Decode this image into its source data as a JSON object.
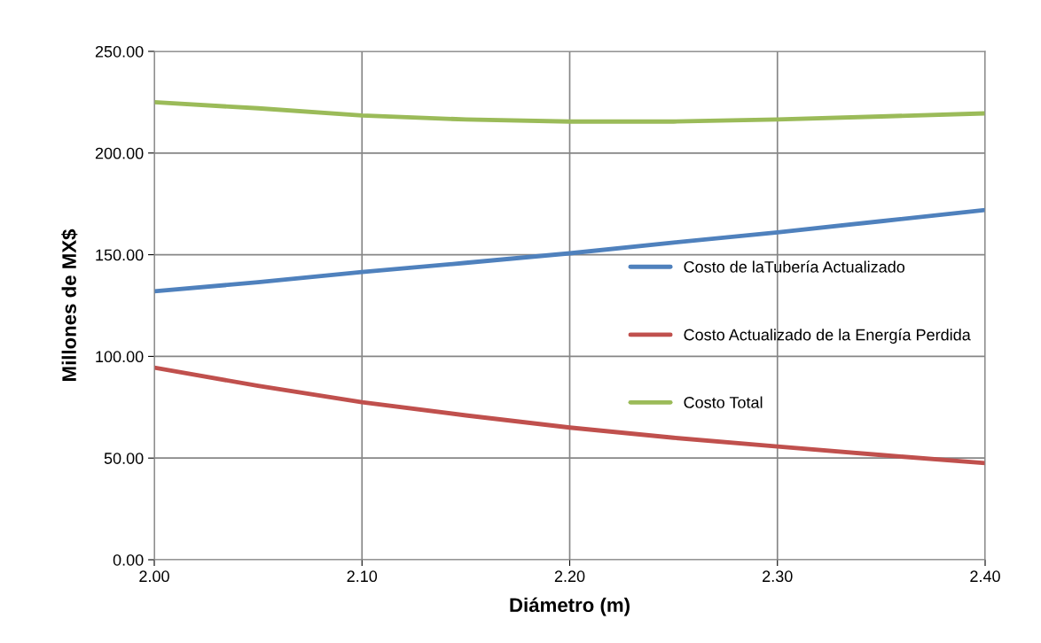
{
  "chart_data": {
    "type": "line",
    "xlabel": "Diámetro (m)",
    "ylabel": "Millones de MX$",
    "x": [
      2.0,
      2.05,
      2.1,
      2.15,
      2.2,
      2.25,
      2.3,
      2.35,
      2.4
    ],
    "series": [
      {
        "name": "Costo de laTubería Actualizado",
        "color": "#4f81bd",
        "values": [
          132,
          136.5,
          141.5,
          146,
          150.7,
          156,
          161,
          166.5,
          172
        ]
      },
      {
        "name": "Costo Actualizado de la Energía Perdida",
        "color": "#c0504d",
        "values": [
          94.5,
          85.5,
          77.5,
          71,
          65,
          60,
          55.7,
          51.5,
          47.5
        ]
      },
      {
        "name": "Costo Total",
        "color": "#9bbb59",
        "values": [
          225,
          222,
          218.5,
          216.5,
          215.5,
          215.5,
          216.5,
          218,
          219.5
        ]
      }
    ],
    "xlim": [
      2.0,
      2.4
    ],
    "xticks": [
      {
        "value": 2.0,
        "label": "2.00"
      },
      {
        "value": 2.1,
        "label": "2.10"
      },
      {
        "value": 2.2,
        "label": "2.20"
      },
      {
        "value": 2.3,
        "label": "2.30"
      },
      {
        "value": 2.4,
        "label": "2.40"
      }
    ],
    "ylim": [
      0,
      250
    ],
    "yticks": [
      {
        "value": 0,
        "label": "0.00"
      },
      {
        "value": 50,
        "label": "50.00"
      },
      {
        "value": 100,
        "label": "100.00"
      },
      {
        "value": 150,
        "label": "150.00"
      },
      {
        "value": 200,
        "label": "200.00"
      },
      {
        "value": 250,
        "label": "250.00"
      }
    ],
    "grid": true,
    "legend": "center right",
    "marker": "none",
    "line_style": "solid"
  }
}
